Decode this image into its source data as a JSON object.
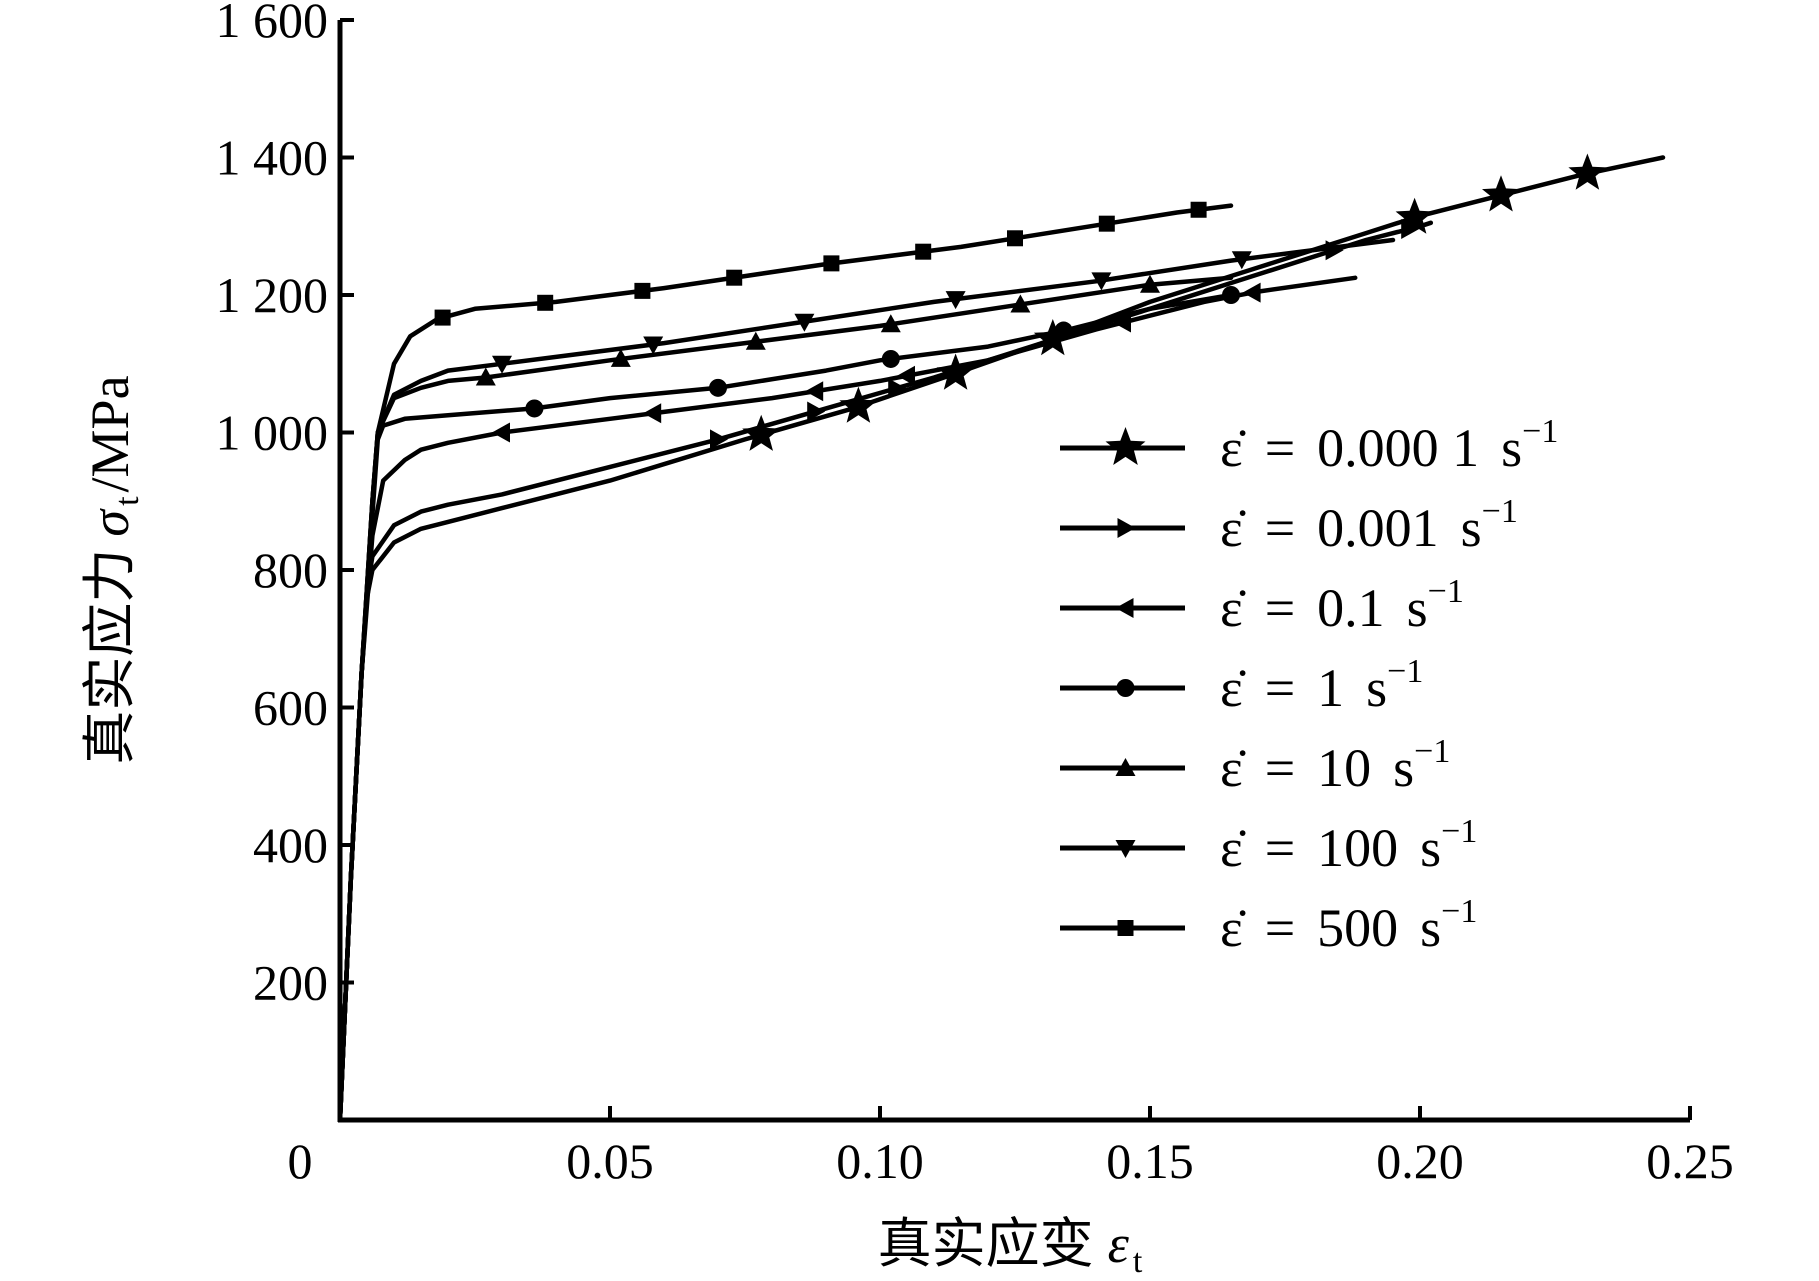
{
  "chart_data": {
    "type": "line",
    "xlabel": {
      "text": "真实应变",
      "symbol": "ε",
      "subscript": "t"
    },
    "ylabel": {
      "text": "真实应力",
      "symbol": "σ",
      "subscript": "t",
      "unit": "/MPa"
    },
    "xlim": [
      0,
      0.25
    ],
    "ylim": [
      0,
      1600
    ],
    "x_ticks": [
      0,
      0.05,
      0.1,
      0.15,
      0.2,
      0.25
    ],
    "x_tick_labels": [
      "0",
      "0.05",
      "0.10",
      "0.15",
      "0.20",
      "0.25"
    ],
    "y_ticks": [
      200,
      400,
      600,
      800,
      1000,
      1200,
      1400,
      1600
    ],
    "y_tick_labels": [
      "200",
      "400",
      "600",
      "800",
      "1 000",
      "1 200",
      "1 400",
      "1 600"
    ],
    "grid": false,
    "legend_position": "right-middle",
    "line_color": "#000000",
    "series": [
      {
        "name": "0.000 1",
        "marker": "star",
        "points": [
          [
            0,
            0
          ],
          [
            0.002,
            350
          ],
          [
            0.004,
            650
          ],
          [
            0.005,
            760
          ],
          [
            0.006,
            800
          ],
          [
            0.01,
            840
          ],
          [
            0.015,
            860
          ],
          [
            0.02,
            870
          ],
          [
            0.03,
            890
          ],
          [
            0.05,
            930
          ],
          [
            0.075,
            990
          ],
          [
            0.095,
            1035
          ],
          [
            0.113,
            1083
          ],
          [
            0.13,
            1130
          ],
          [
            0.15,
            1190
          ],
          [
            0.17,
            1240
          ],
          [
            0.19,
            1290
          ],
          [
            0.2,
            1315
          ],
          [
            0.215,
            1345
          ],
          [
            0.23,
            1375
          ],
          [
            0.245,
            1400
          ]
        ],
        "markers_x": [
          0.078,
          0.096,
          0.114,
          0.132,
          0.199,
          0.215,
          0.231
        ]
      },
      {
        "name": "0.001",
        "marker": "triangle-right",
        "points": [
          [
            0,
            0
          ],
          [
            0.002,
            350
          ],
          [
            0.004,
            650
          ],
          [
            0.005,
            770
          ],
          [
            0.006,
            820
          ],
          [
            0.01,
            865
          ],
          [
            0.015,
            885
          ],
          [
            0.02,
            895
          ],
          [
            0.03,
            910
          ],
          [
            0.05,
            950
          ],
          [
            0.07,
            990
          ],
          [
            0.09,
            1035
          ],
          [
            0.11,
            1080
          ],
          [
            0.13,
            1130
          ],
          [
            0.15,
            1180
          ],
          [
            0.17,
            1230
          ],
          [
            0.19,
            1280
          ],
          [
            0.2,
            1300
          ],
          [
            0.202,
            1305
          ]
        ],
        "markers_x": [
          0.07,
          0.088,
          0.103,
          0.184,
          0.198
        ]
      },
      {
        "name": "0.1",
        "marker": "triangle-left",
        "points": [
          [
            0,
            0
          ],
          [
            0.002,
            350
          ],
          [
            0.004,
            650
          ],
          [
            0.006,
            850
          ],
          [
            0.008,
            930
          ],
          [
            0.012,
            960
          ],
          [
            0.015,
            975
          ],
          [
            0.02,
            985
          ],
          [
            0.03,
            1000
          ],
          [
            0.05,
            1020
          ],
          [
            0.06,
            1030
          ],
          [
            0.08,
            1050
          ],
          [
            0.1,
            1075
          ],
          [
            0.12,
            1105
          ],
          [
            0.14,
            1150
          ],
          [
            0.16,
            1190
          ],
          [
            0.17,
            1205
          ],
          [
            0.188,
            1225
          ]
        ],
        "markers_x": [
          0.03,
          0.058,
          0.088,
          0.105,
          0.145,
          0.169
        ]
      },
      {
        "name": "1",
        "marker": "circle",
        "points": [
          [
            0,
            0
          ],
          [
            0.002,
            350
          ],
          [
            0.004,
            650
          ],
          [
            0.006,
            880
          ],
          [
            0.007,
            990
          ],
          [
            0.008,
            1010
          ],
          [
            0.012,
            1020
          ],
          [
            0.02,
            1025
          ],
          [
            0.036,
            1035
          ],
          [
            0.05,
            1050
          ],
          [
            0.07,
            1065
          ],
          [
            0.09,
            1090
          ],
          [
            0.1,
            1105
          ],
          [
            0.12,
            1125
          ],
          [
            0.135,
            1150
          ],
          [
            0.15,
            1180
          ],
          [
            0.165,
            1200
          ]
        ],
        "markers_x": [
          0.036,
          0.07,
          0.102,
          0.134,
          0.165
        ]
      },
      {
        "name": "10",
        "marker": "triangle-up",
        "points": [
          [
            0,
            0
          ],
          [
            0.002,
            350
          ],
          [
            0.004,
            650
          ],
          [
            0.006,
            900
          ],
          [
            0.007,
            1000
          ],
          [
            0.01,
            1050
          ],
          [
            0.015,
            1065
          ],
          [
            0.02,
            1075
          ],
          [
            0.027,
            1080
          ],
          [
            0.05,
            1105
          ],
          [
            0.075,
            1130
          ],
          [
            0.1,
            1155
          ],
          [
            0.125,
            1185
          ],
          [
            0.15,
            1215
          ],
          [
            0.165,
            1225
          ]
        ],
        "markers_x": [
          0.027,
          0.052,
          0.077,
          0.102,
          0.126,
          0.15
        ]
      },
      {
        "name": "100",
        "marker": "triangle-down",
        "points": [
          [
            0,
            0
          ],
          [
            0.002,
            350
          ],
          [
            0.004,
            650
          ],
          [
            0.006,
            900
          ],
          [
            0.007,
            1000
          ],
          [
            0.01,
            1055
          ],
          [
            0.015,
            1075
          ],
          [
            0.02,
            1090
          ],
          [
            0.03,
            1100
          ],
          [
            0.06,
            1130
          ],
          [
            0.085,
            1160
          ],
          [
            0.11,
            1190
          ],
          [
            0.14,
            1220
          ],
          [
            0.165,
            1250
          ],
          [
            0.185,
            1270
          ],
          [
            0.195,
            1280
          ]
        ],
        "markers_x": [
          0.03,
          0.058,
          0.086,
          0.114,
          0.141,
          0.167
        ]
      },
      {
        "name": "500",
        "marker": "square",
        "points": [
          [
            0,
            0
          ],
          [
            0.002,
            350
          ],
          [
            0.004,
            650
          ],
          [
            0.006,
            900
          ],
          [
            0.007,
            1000
          ],
          [
            0.01,
            1100
          ],
          [
            0.013,
            1140
          ],
          [
            0.018,
            1165
          ],
          [
            0.025,
            1180
          ],
          [
            0.04,
            1190
          ],
          [
            0.06,
            1210
          ],
          [
            0.09,
            1245
          ],
          [
            0.115,
            1270
          ],
          [
            0.135,
            1295
          ],
          [
            0.155,
            1320
          ],
          [
            0.165,
            1330
          ]
        ],
        "markers_x": [
          0.019,
          0.038,
          0.056,
          0.073,
          0.091,
          0.108,
          0.125,
          0.142,
          0.159
        ]
      }
    ]
  },
  "legend": {
    "items": [
      {
        "symbol": "ε̇",
        "eq": "=",
        "value": "0.000 1",
        "unit": "s",
        "exp": "−1"
      },
      {
        "symbol": "ε̇",
        "eq": "=",
        "value": "0.001",
        "unit": "s",
        "exp": "−1"
      },
      {
        "symbol": "ε̇",
        "eq": "=",
        "value": "0.1",
        "unit": "s",
        "exp": "−1"
      },
      {
        "symbol": "ε̇",
        "eq": "=",
        "value": "1",
        "unit": "s",
        "exp": "−1"
      },
      {
        "symbol": "ε̇",
        "eq": "=",
        "value": "10",
        "unit": "s",
        "exp": "−1"
      },
      {
        "symbol": "ε̇",
        "eq": "=",
        "value": "100",
        "unit": "s",
        "exp": "−1"
      },
      {
        "symbol": "ε̇",
        "eq": "=",
        "value": "500",
        "unit": "s",
        "exp": "−1"
      }
    ]
  }
}
